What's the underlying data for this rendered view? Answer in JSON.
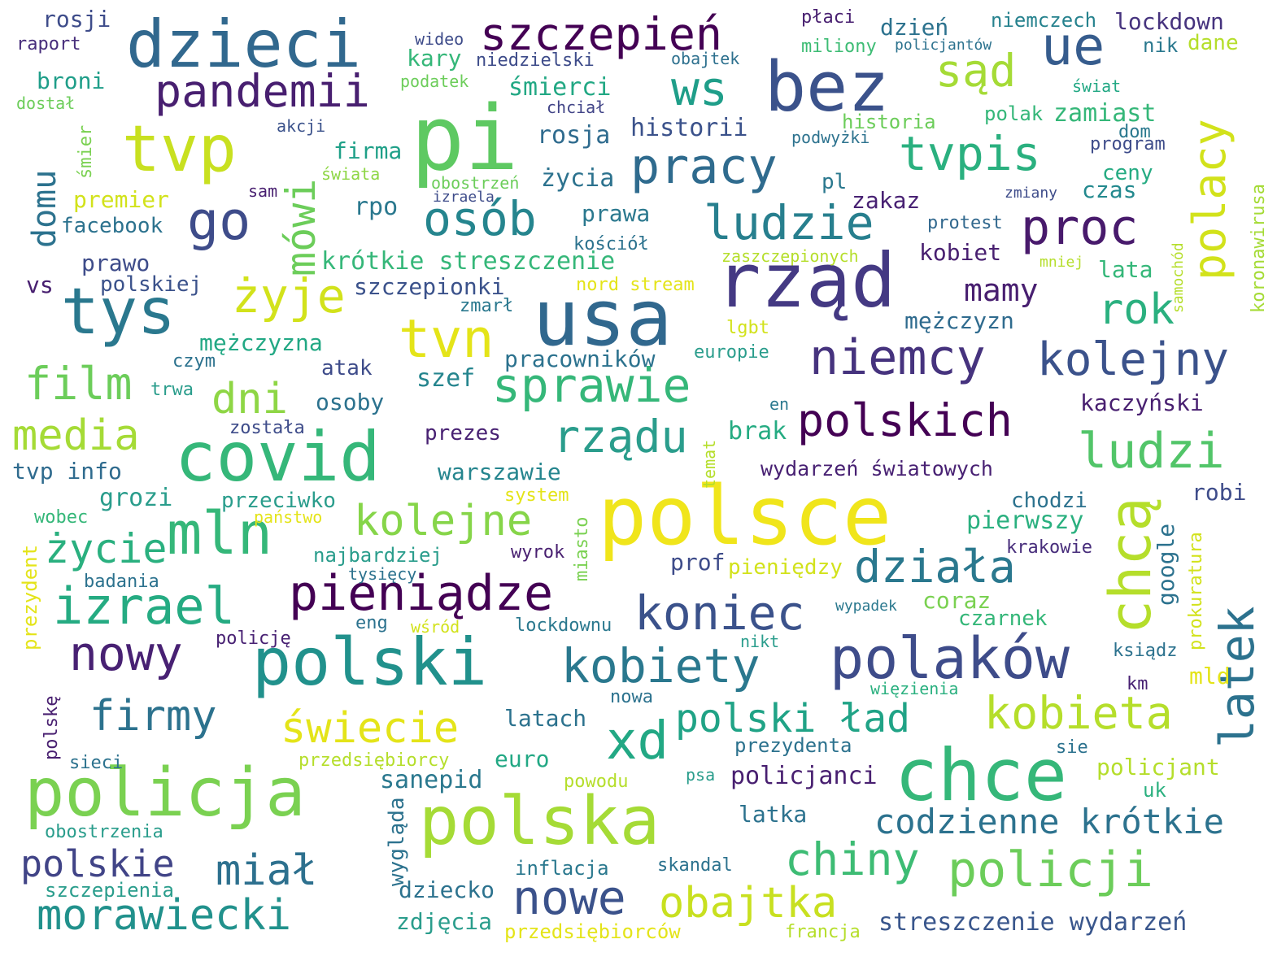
{
  "words": [
    {
      "text": "pi",
      "color": "#5ec962"
    },
    {
      "text": "polsce",
      "color": "#f0e51b"
    },
    {
      "text": "usa",
      "color": "#31688e"
    },
    {
      "text": "dzieci",
      "color": "#31688e"
    },
    {
      "text": "rząd",
      "color": "#443983"
    },
    {
      "text": "polski",
      "color": "#21918c"
    },
    {
      "text": "polska",
      "color": "#a5db36"
    },
    {
      "text": "covid",
      "color": "#35b779"
    },
    {
      "text": "chce",
      "color": "#35b779"
    },
    {
      "text": "policja",
      "color": "#7ad151"
    },
    {
      "text": "bez",
      "color": "#3b528b"
    },
    {
      "text": "tys",
      "color": "#2a788e"
    },
    {
      "text": "tvp",
      "color": "#c8e020"
    },
    {
      "text": "mln",
      "color": "#35b779"
    },
    {
      "text": "polaków",
      "color": "#3e4c8a"
    },
    {
      "text": "szczepień",
      "color": "#440154"
    },
    {
      "text": "pracy",
      "color": "#2f6b8e"
    },
    {
      "text": "ue",
      "color": "#365c8d"
    },
    {
      "text": "niemcy",
      "color": "#46337e"
    },
    {
      "text": "tvpis",
      "color": "#2ab07f"
    },
    {
      "text": "kolejny",
      "color": "#3b528b"
    },
    {
      "text": "ws",
      "color": "#1f9e89"
    },
    {
      "text": "proc",
      "color": "#481a6c"
    },
    {
      "text": "ludzie",
      "color": "#277f8e"
    },
    {
      "text": "osób",
      "color": "#25858e"
    },
    {
      "text": "go",
      "color": "#3e4c8a"
    },
    {
      "text": "pandemii",
      "color": "#481f70"
    },
    {
      "text": "mówi",
      "color": "#6ccd5a"
    },
    {
      "text": "sąd",
      "color": "#a5db36"
    },
    {
      "text": "polacy",
      "color": "#d2e21b"
    },
    {
      "text": "tvn",
      "color": "#e4e419"
    },
    {
      "text": "żyje",
      "color": "#d2e21b"
    },
    {
      "text": "rok",
      "color": "#2ab07f"
    },
    {
      "text": "sprawie",
      "color": "#35b779"
    },
    {
      "text": "film",
      "color": "#6ccd5a"
    },
    {
      "text": "dni",
      "color": "#8ed645"
    },
    {
      "text": "media",
      "color": "#a5db36"
    },
    {
      "text": "polskich",
      "color": "#440154"
    },
    {
      "text": "ludzi",
      "color": "#52c569"
    },
    {
      "text": "rządu",
      "color": "#2a9d8c"
    },
    {
      "text": "kolejne",
      "color": "#86d549"
    },
    {
      "text": "chcą",
      "color": "#b5de2b"
    },
    {
      "text": "życie",
      "color": "#2ab07f"
    },
    {
      "text": "działa",
      "color": "#2a788e"
    },
    {
      "text": "izrael",
      "color": "#25ab82"
    },
    {
      "text": "pieniądze",
      "color": "#440154"
    },
    {
      "text": "koniec",
      "color": "#3b528b"
    },
    {
      "text": "latek",
      "color": "#2c728e"
    },
    {
      "text": "nowy",
      "color": "#482173"
    },
    {
      "text": "kobiety",
      "color": "#2a788e"
    },
    {
      "text": "firmy",
      "color": "#2c728e"
    },
    {
      "text": "xd",
      "color": "#22a884"
    },
    {
      "text": "polski ład",
      "color": "#20a386"
    },
    {
      "text": "kobieta",
      "color": "#b5de2b"
    },
    {
      "text": "świecie",
      "color": "#e4e419"
    },
    {
      "text": "chiny",
      "color": "#3dbc74"
    },
    {
      "text": "policji",
      "color": "#6ccd5a"
    },
    {
      "text": "codzienne krótkie",
      "color": "#2c728e"
    },
    {
      "text": "polskie",
      "color": "#414487"
    },
    {
      "text": "miał",
      "color": "#2d708e"
    },
    {
      "text": "nowe",
      "color": "#3b528b"
    },
    {
      "text": "obajtka",
      "color": "#c8e020"
    },
    {
      "text": "morawiecki",
      "color": "#21918c"
    },
    {
      "text": "streszczenie wydarzeń",
      "color": "#39568c"
    },
    {
      "text": "krótkie streszczenie",
      "color": "#35b779"
    },
    {
      "text": "historii",
      "color": "#3b528b"
    },
    {
      "text": "mamy",
      "color": "#481f70"
    },
    {
      "text": "domu",
      "color": "#2c728e"
    },
    {
      "text": "wydarzeń światowych",
      "color": "#482173"
    },
    {
      "text": "lockdown",
      "color": "#46337e"
    },
    {
      "text": "rosji",
      "color": "#3e4c8a"
    },
    {
      "text": "raport",
      "color": "#472d7b"
    },
    {
      "text": "wideo",
      "color": "#3e4c8a"
    },
    {
      "text": "niedzielski",
      "color": "#3e4c8a"
    },
    {
      "text": "obajtek",
      "color": "#2d708e"
    },
    {
      "text": "płaci",
      "color": "#481f70"
    },
    {
      "text": "dzień",
      "color": "#2c728e"
    },
    {
      "text": "niemczech",
      "color": "#26828e"
    },
    {
      "text": "nik",
      "color": "#2a788e"
    },
    {
      "text": "dane",
      "color": "#b5de2b"
    },
    {
      "text": "miliony",
      "color": "#3dbc74"
    },
    {
      "text": "policjantów",
      "color": "#2c728e"
    },
    {
      "text": "kary",
      "color": "#35b779"
    },
    {
      "text": "broni",
      "color": "#1f9e89"
    },
    {
      "text": "dostał",
      "color": "#6ccd5a"
    },
    {
      "text": "podatek",
      "color": "#6ccd5a"
    },
    {
      "text": "śmierci",
      "color": "#22a884"
    },
    {
      "text": "chciał",
      "color": "#414487"
    },
    {
      "text": "świat",
      "color": "#22a884"
    },
    {
      "text": "historia",
      "color": "#6ccd5a"
    },
    {
      "text": "polak",
      "color": "#35b779"
    },
    {
      "text": "zamiast",
      "color": "#35b779"
    },
    {
      "text": "dom",
      "color": "#2a788e"
    },
    {
      "text": "akcji",
      "color": "#3b528b"
    },
    {
      "text": "śmier",
      "color": "#7ad151"
    },
    {
      "text": "firma",
      "color": "#1fa088"
    },
    {
      "text": "świata",
      "color": "#8ed645"
    },
    {
      "text": "rosja",
      "color": "#2f6b8e"
    },
    {
      "text": "życia",
      "color": "#2c728e"
    },
    {
      "text": "podwyżki",
      "color": "#2c728e"
    },
    {
      "text": "program",
      "color": "#3e4c8a"
    },
    {
      "text": "ceny",
      "color": "#25ab82"
    },
    {
      "text": "premier",
      "color": "#d2e21b"
    },
    {
      "text": "obostrzeń",
      "color": "#6ccd5a"
    },
    {
      "text": "izraela",
      "color": "#3e4c8a"
    },
    {
      "text": "pl",
      "color": "#2a788e"
    },
    {
      "text": "czas",
      "color": "#23898e"
    },
    {
      "text": "zmiany",
      "color": "#3e4c8a"
    },
    {
      "text": "sam",
      "color": "#481f70"
    },
    {
      "text": "rpo",
      "color": "#2a788e"
    },
    {
      "text": "zakaz",
      "color": "#482173"
    },
    {
      "text": "prawa",
      "color": "#2a788e"
    },
    {
      "text": "protest",
      "color": "#31688e"
    },
    {
      "text": "samochód",
      "color": "#b5de2b"
    },
    {
      "text": "koronawirusa",
      "color": "#a5db36"
    },
    {
      "text": "facebook",
      "color": "#2c728e"
    },
    {
      "text": "kościół",
      "color": "#2c728e"
    },
    {
      "text": "zaszczepionych",
      "color": "#b5de2b"
    },
    {
      "text": "kobiet",
      "color": "#481f70"
    },
    {
      "text": "mniej",
      "color": "#b5de2b"
    },
    {
      "text": "prawo",
      "color": "#3e4c8a"
    },
    {
      "text": "lata",
      "color": "#35b779"
    },
    {
      "text": "vs",
      "color": "#481f70"
    },
    {
      "text": "polskiej",
      "color": "#3b528b"
    },
    {
      "text": "szczepionki",
      "color": "#3b528b"
    },
    {
      "text": "nord stream",
      "color": "#e4e419"
    },
    {
      "text": "zmarł",
      "color": "#2a788e"
    },
    {
      "text": "mężczyzn",
      "color": "#2f6b8e"
    },
    {
      "text": "lgbt",
      "color": "#d2e21b"
    },
    {
      "text": "mężczyzna",
      "color": "#22a884"
    },
    {
      "text": "pracowników",
      "color": "#2c728e"
    },
    {
      "text": "europie",
      "color": "#2a9d8c"
    },
    {
      "text": "czym",
      "color": "#2c728e"
    },
    {
      "text": "atak",
      "color": "#3e4c8a"
    },
    {
      "text": "trwa",
      "color": "#2a9d8c"
    },
    {
      "text": "szef",
      "color": "#25858e"
    },
    {
      "text": "osoby",
      "color": "#2c728e"
    },
    {
      "text": "kaczyński",
      "color": "#481f70"
    },
    {
      "text": "została",
      "color": "#3e4c8a"
    },
    {
      "text": "en",
      "color": "#2a788e"
    },
    {
      "text": "prezes",
      "color": "#482173"
    },
    {
      "text": "temat",
      "color": "#b5de2b"
    },
    {
      "text": "brak",
      "color": "#25ab82"
    },
    {
      "text": "tvp info",
      "color": "#2f6b8e"
    },
    {
      "text": "warszawie",
      "color": "#25858e"
    },
    {
      "text": "system",
      "color": "#e4e419"
    },
    {
      "text": "grozi",
      "color": "#2a9d8c"
    },
    {
      "text": "przeciwko",
      "color": "#2a9d8c"
    },
    {
      "text": "wobec",
      "color": "#35b779"
    },
    {
      "text": "państwo",
      "color": "#e4e419"
    },
    {
      "text": "robi",
      "color": "#3e4c8a"
    },
    {
      "text": "chodzi",
      "color": "#2c728e"
    },
    {
      "text": "pierwszy",
      "color": "#2ab07f"
    },
    {
      "text": "miasto",
      "color": "#7ad151"
    },
    {
      "text": "prokuratura",
      "color": "#d2e21b"
    },
    {
      "text": "google",
      "color": "#2c728e"
    },
    {
      "text": "najbardziej",
      "color": "#2a9d8c"
    },
    {
      "text": "wyrok",
      "color": "#481f70"
    },
    {
      "text": "krakowie",
      "color": "#472d7b"
    },
    {
      "text": "tysięcy",
      "color": "#2c728e"
    },
    {
      "text": "prof",
      "color": "#3e4c8a"
    },
    {
      "text": "pieniędzy",
      "color": "#d2e21b"
    },
    {
      "text": "badania",
      "color": "#2c728e"
    },
    {
      "text": "prezydent",
      "color": "#e4e419"
    },
    {
      "text": "coraz",
      "color": "#7ad151"
    },
    {
      "text": "wypadek",
      "color": "#2a788e"
    },
    {
      "text": "czarnek",
      "color": "#35b779"
    },
    {
      "text": "eng",
      "color": "#2c728e"
    },
    {
      "text": "wśród",
      "color": "#d2e21b"
    },
    {
      "text": "lockdownu",
      "color": "#2a788e"
    },
    {
      "text": "policję",
      "color": "#482173"
    },
    {
      "text": "nikt",
      "color": "#2a9d8c"
    },
    {
      "text": "ksiądz",
      "color": "#2c728e"
    },
    {
      "text": "mld",
      "color": "#e4e419"
    },
    {
      "text": "polskę",
      "color": "#481f70"
    },
    {
      "text": "nowa",
      "color": "#2c728e"
    },
    {
      "text": "więzienia",
      "color": "#2ab07f"
    },
    {
      "text": "km",
      "color": "#482173"
    },
    {
      "text": "latach",
      "color": "#2c728e"
    },
    {
      "text": "prezydenta",
      "color": "#2c728e"
    },
    {
      "text": "sie",
      "color": "#2c728e"
    },
    {
      "text": "sieci",
      "color": "#2c728e"
    },
    {
      "text": "przedsiębiorcy",
      "color": "#b5de2b"
    },
    {
      "text": "euro",
      "color": "#22a884"
    },
    {
      "text": "policjanci",
      "color": "#481f70"
    },
    {
      "text": "policjant",
      "color": "#b5de2b"
    },
    {
      "text": "sanepid",
      "color": "#2a788e"
    },
    {
      "text": "powodu",
      "color": "#b5de2b"
    },
    {
      "text": "psa",
      "color": "#2a9d8c"
    },
    {
      "text": "uk",
      "color": "#2ab07f"
    },
    {
      "text": "latka",
      "color": "#2c728e"
    },
    {
      "text": "obostrzenia",
      "color": "#2a9d8c"
    },
    {
      "text": "wygląda",
      "color": "#2c728e"
    },
    {
      "text": "inflacja",
      "color": "#2a788e"
    },
    {
      "text": "skandal",
      "color": "#2c728e"
    },
    {
      "text": "szczepienia",
      "color": "#2a9d8c"
    },
    {
      "text": "dziecko",
      "color": "#2c728e"
    },
    {
      "text": "zdjęcia",
      "color": "#2a9d8c"
    },
    {
      "text": "przedsiębiorców",
      "color": "#e4e419"
    },
    {
      "text": "francja",
      "color": "#b5de2b"
    }
  ]
}
